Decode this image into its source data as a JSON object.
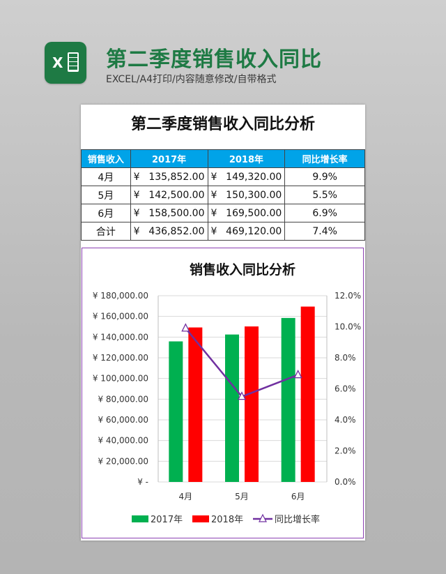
{
  "header": {
    "title": "第二季度销售收入同比",
    "subtitle": "EXCEL/A4打印/内容随意修改/自带格式",
    "logo_letter": "X",
    "logo_icon": "excel-icon"
  },
  "document": {
    "title": "第二季度销售收入同比分析",
    "table": {
      "headers": [
        "销售收入",
        "2017年",
        "2018年",
        "同比增长率"
      ],
      "currency_symbol": "¥",
      "rows": [
        {
          "label": "4月",
          "y2017": "135,852.00",
          "y2018": "149,320.00",
          "growth": "9.9%"
        },
        {
          "label": "5月",
          "y2017": "142,500.00",
          "y2018": "150,300.00",
          "growth": "5.5%"
        },
        {
          "label": "6月",
          "y2017": "158,500.00",
          "y2018": "169,500.00",
          "growth": "6.9%"
        },
        {
          "label": "合计",
          "y2017": "436,852.00",
          "y2018": "469,120.00",
          "growth": "7.4%"
        }
      ]
    }
  },
  "chart_data": {
    "type": "bar",
    "title": "销售收入同比分析",
    "categories": [
      "4月",
      "5月",
      "6月"
    ],
    "series": [
      {
        "name": "2017年",
        "type": "bar",
        "axis": "left",
        "color": "#00b050",
        "values": [
          135852,
          142500,
          158500
        ]
      },
      {
        "name": "2018年",
        "type": "bar",
        "axis": "left",
        "color": "#ff0000",
        "values": [
          149320,
          150300,
          169500
        ]
      },
      {
        "name": "同比增长率",
        "type": "line",
        "axis": "right",
        "color": "#7030a0",
        "marker": "triangle",
        "values": [
          0.099,
          0.055,
          0.069
        ]
      }
    ],
    "ylim": [
      0,
      180000
    ],
    "y2lim": [
      0,
      0.12
    ],
    "yticks": [
      "¥ -",
      "¥ 20,000.00",
      "¥ 40,000.00",
      "¥ 60,000.00",
      "¥ 80,000.00",
      "¥ 100,000.00",
      "¥ 120,000.00",
      "¥ 140,000.00",
      "¥ 160,000.00",
      "¥ 180,000.00"
    ],
    "y2ticks": [
      "0.0%",
      "2.0%",
      "4.0%",
      "6.0%",
      "8.0%",
      "10.0%",
      "12.0%"
    ],
    "grid": true,
    "legend_position": "bottom"
  }
}
